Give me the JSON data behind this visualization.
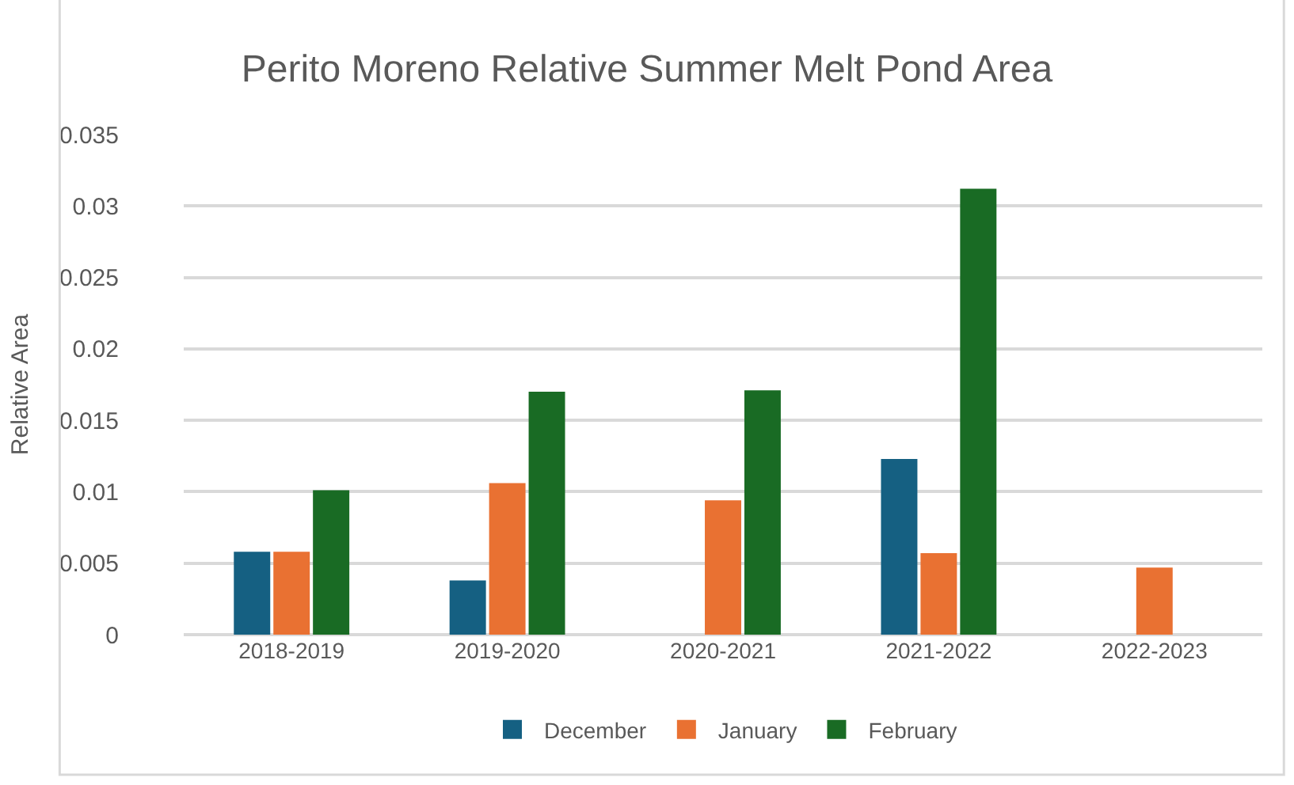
{
  "chart_data": {
    "type": "bar",
    "title": "Perito Moreno Relative Summer Melt Pond Area",
    "ylabel": "Relative Area",
    "categories": [
      "2018-2019",
      "2019-2020",
      "2020-2021",
      "2021-2022",
      "2022-2023"
    ],
    "series": [
      {
        "name": "December",
        "color": "#156082",
        "values": [
          0.0058,
          0.0038,
          null,
          0.0123,
          null
        ]
      },
      {
        "name": "January",
        "color": "#e97132",
        "values": [
          0.0058,
          0.0106,
          0.0094,
          0.0057,
          0.0047
        ]
      },
      {
        "name": "February",
        "color": "#196b24",
        "values": [
          0.0101,
          0.017,
          0.0171,
          0.0312,
          null
        ]
      }
    ],
    "ylim": [
      0,
      0.035
    ],
    "yticks": [
      0,
      0.005,
      0.01,
      0.015,
      0.02,
      0.025,
      0.03,
      0.035
    ],
    "grid": "y",
    "legend": "bottom"
  }
}
